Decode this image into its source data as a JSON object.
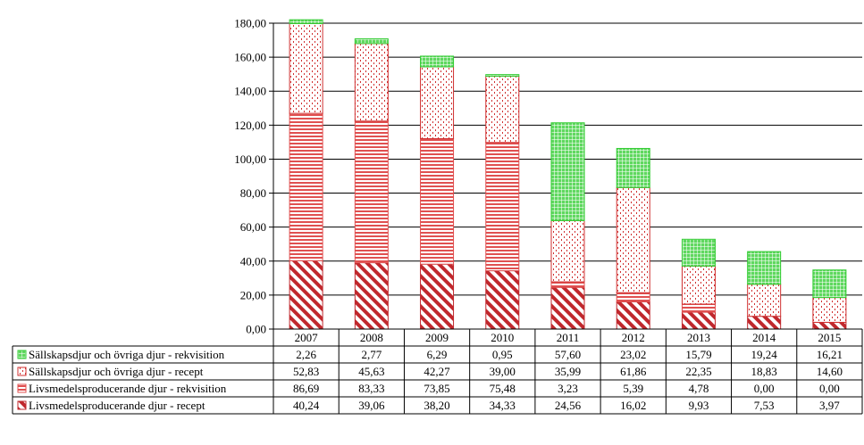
{
  "chart_data": {
    "type": "bar",
    "stacked": true,
    "categories": [
      "2007",
      "2008",
      "2009",
      "2010",
      "2011",
      "2012",
      "2013",
      "2014",
      "2015"
    ],
    "ylim": [
      0,
      180
    ],
    "yticks": [
      "0,00",
      "20,00",
      "40,00",
      "60,00",
      "80,00",
      "100,00",
      "120,00",
      "140,00",
      "160,00",
      "180,00"
    ],
    "ytick_values": [
      0,
      20,
      40,
      60,
      80,
      100,
      120,
      140,
      160,
      180
    ],
    "grid": true,
    "legend_placement": "data-table-left",
    "series": [
      {
        "name": "Livsmedelsproducerande djur - recept",
        "color": "#c0282d",
        "pattern": "diagonal-stripes",
        "values": [
          40.24,
          39.06,
          38.2,
          34.33,
          24.56,
          16.02,
          9.93,
          7.53,
          3.97
        ],
        "labels": [
          "40,24",
          "39,06",
          "38,20",
          "34,33",
          "24,56",
          "16,02",
          "9,93",
          "7,53",
          "3,97"
        ]
      },
      {
        "name": "Livsmedelsproducerande djur - rekvisition",
        "color": "#e05050",
        "pattern": "horizontal-stripes",
        "values": [
          86.69,
          83.33,
          73.85,
          75.48,
          3.23,
          5.39,
          4.78,
          0.0,
          0.0
        ],
        "labels": [
          "86,69",
          "83,33",
          "73,85",
          "75,48",
          "3,23",
          "5,39",
          "4,78",
          "0,00",
          "0,00"
        ]
      },
      {
        "name": "Sällskapsdjur och övriga djur - recept",
        "color": "#d03030",
        "pattern": "dots",
        "values": [
          52.83,
          45.63,
          42.27,
          39.0,
          35.99,
          61.86,
          22.35,
          18.83,
          14.6
        ],
        "labels": [
          "52,83",
          "45,63",
          "42,27",
          "39,00",
          "35,99",
          "61,86",
          "22,35",
          "18,83",
          "14,60"
        ]
      },
      {
        "name": "Sällskapsdjur och övriga djur - rekvisition",
        "color": "#33cc33",
        "pattern": "grid",
        "values": [
          2.26,
          2.77,
          6.29,
          0.95,
          57.6,
          23.02,
          15.79,
          19.24,
          16.21
        ],
        "labels": [
          "2,26",
          "2,77",
          "6,29",
          "0,95",
          "57,60",
          "23,02",
          "15,79",
          "19,24",
          "16,21"
        ]
      }
    ],
    "table_row_order": [
      3,
      2,
      1,
      0
    ]
  }
}
